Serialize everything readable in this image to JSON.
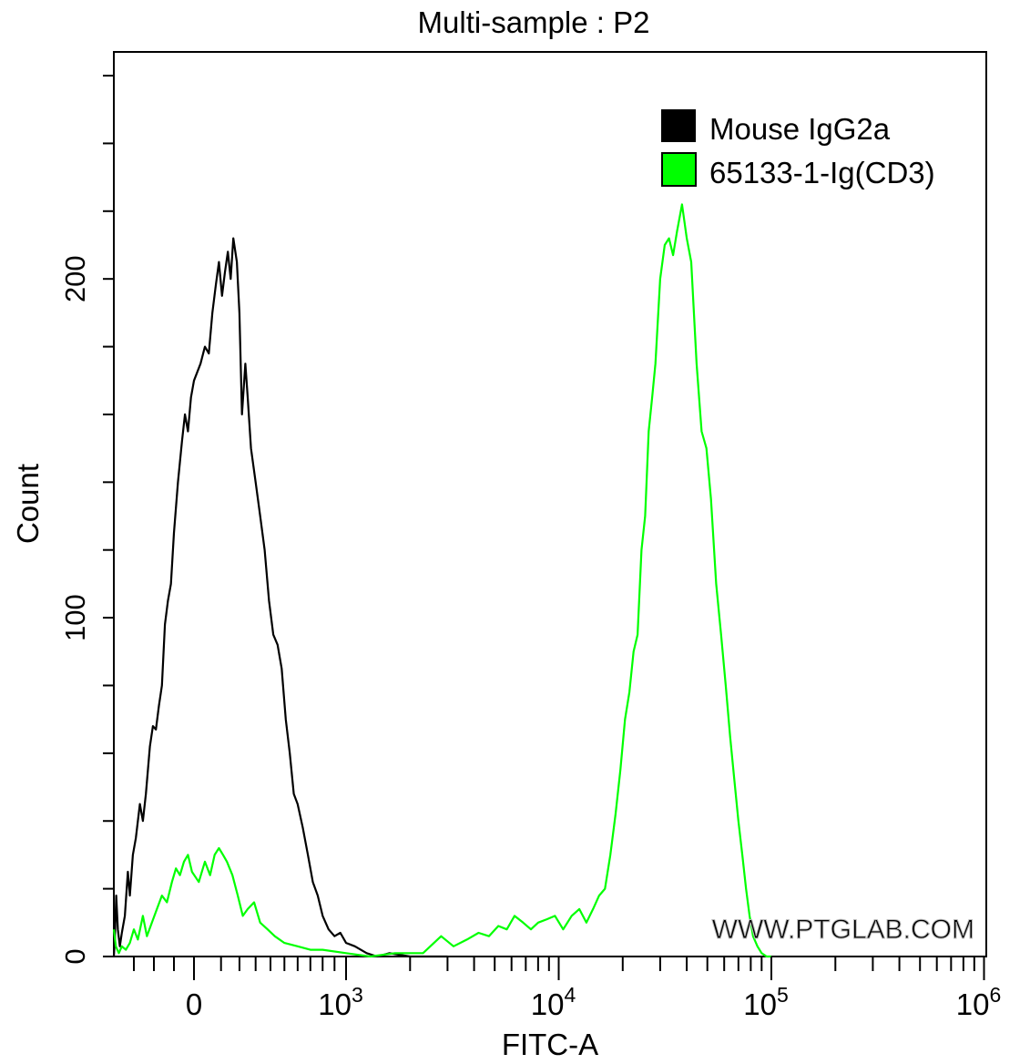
{
  "chart_data": {
    "type": "line",
    "title": "Multi-sample : P2",
    "xlabel": "FITC-A",
    "ylabel": "Count",
    "x_scale": "biexponential",
    "xlim": [
      -400,
      1000000
    ],
    "ylim": [
      0,
      267
    ],
    "x_ticks": [
      {
        "value": 0,
        "base": "0",
        "exp": ""
      },
      {
        "value": 1000,
        "base": "10",
        "exp": "3"
      },
      {
        "value": 10000,
        "base": "10",
        "exp": "4"
      },
      {
        "value": 100000,
        "base": "10",
        "exp": "5"
      },
      {
        "value": 1000000,
        "base": "10",
        "exp": "6"
      }
    ],
    "y_ticks": [
      0,
      100,
      200
    ],
    "legend_position": "top-right",
    "series": [
      {
        "name": "Mouse IgG2a",
        "color": "#000000",
        "points": [
          [
            -400,
            0
          ],
          [
            -395,
            5
          ],
          [
            -388,
            18
          ],
          [
            -380,
            8
          ],
          [
            -370,
            3
          ],
          [
            -360,
            7
          ],
          [
            -345,
            12
          ],
          [
            -330,
            25
          ],
          [
            -320,
            18
          ],
          [
            -305,
            30
          ],
          [
            -290,
            35
          ],
          [
            -270,
            45
          ],
          [
            -255,
            40
          ],
          [
            -240,
            48
          ],
          [
            -220,
            62
          ],
          [
            -205,
            68
          ],
          [
            -190,
            67
          ],
          [
            -175,
            74
          ],
          [
            -160,
            80
          ],
          [
            -145,
            98
          ],
          [
            -130,
            105
          ],
          [
            -115,
            110
          ],
          [
            -100,
            125
          ],
          [
            -80,
            140
          ],
          [
            -60,
            152
          ],
          [
            -45,
            160
          ],
          [
            -30,
            155
          ],
          [
            -15,
            165
          ],
          [
            0,
            170
          ],
          [
            15,
            175
          ],
          [
            30,
            180
          ],
          [
            45,
            178
          ],
          [
            60,
            190
          ],
          [
            75,
            198
          ],
          [
            90,
            205
          ],
          [
            105,
            195
          ],
          [
            120,
            202
          ],
          [
            135,
            208
          ],
          [
            150,
            200
          ],
          [
            165,
            212
          ],
          [
            185,
            205
          ],
          [
            200,
            190
          ],
          [
            215,
            160
          ],
          [
            235,
            175
          ],
          [
            250,
            165
          ],
          [
            270,
            150
          ],
          [
            300,
            140
          ],
          [
            330,
            130
          ],
          [
            360,
            120
          ],
          [
            390,
            105
          ],
          [
            420,
            95
          ],
          [
            450,
            92
          ],
          [
            480,
            85
          ],
          [
            510,
            70
          ],
          [
            540,
            60
          ],
          [
            570,
            48
          ],
          [
            600,
            45
          ],
          [
            640,
            38
          ],
          [
            680,
            30
          ],
          [
            720,
            22
          ],
          [
            760,
            18
          ],
          [
            800,
            12
          ],
          [
            850,
            8
          ],
          [
            900,
            6
          ],
          [
            950,
            7
          ],
          [
            1000,
            4
          ],
          [
            1100,
            3
          ],
          [
            1250,
            1
          ],
          [
            1400,
            0
          ],
          [
            1600,
            1
          ],
          [
            2000,
            0
          ],
          [
            3000,
            0
          ]
        ]
      },
      {
        "name": "65133-1-Ig(CD3)",
        "color": "#00ff00",
        "points": [
          [
            -400,
            8
          ],
          [
            -390,
            3
          ],
          [
            -375,
            1
          ],
          [
            -360,
            3
          ],
          [
            -340,
            2
          ],
          [
            -320,
            4
          ],
          [
            -300,
            8
          ],
          [
            -280,
            5
          ],
          [
            -255,
            12
          ],
          [
            -235,
            6
          ],
          [
            -210,
            10
          ],
          [
            -185,
            14
          ],
          [
            -160,
            18
          ],
          [
            -135,
            16
          ],
          [
            -110,
            22
          ],
          [
            -90,
            26
          ],
          [
            -70,
            24
          ],
          [
            -50,
            28
          ],
          [
            -30,
            30
          ],
          [
            -10,
            25
          ],
          [
            10,
            22
          ],
          [
            30,
            28
          ],
          [
            50,
            24
          ],
          [
            70,
            30
          ],
          [
            90,
            32
          ],
          [
            110,
            30
          ],
          [
            130,
            28
          ],
          [
            160,
            24
          ],
          [
            190,
            18
          ],
          [
            220,
            12
          ],
          [
            250,
            14
          ],
          [
            290,
            16
          ],
          [
            330,
            10
          ],
          [
            380,
            8
          ],
          [
            430,
            6
          ],
          [
            500,
            4
          ],
          [
            600,
            3
          ],
          [
            700,
            2
          ],
          [
            800,
            2
          ],
          [
            1000,
            1
          ],
          [
            1300,
            0
          ],
          [
            1700,
            1
          ],
          [
            2300,
            1
          ],
          [
            2800,
            6
          ],
          [
            3200,
            3
          ],
          [
            3700,
            5
          ],
          [
            4200,
            7
          ],
          [
            4700,
            6
          ],
          [
            5200,
            9
          ],
          [
            5700,
            8
          ],
          [
            6200,
            12
          ],
          [
            6800,
            10
          ],
          [
            7400,
            8
          ],
          [
            8000,
            10
          ],
          [
            8800,
            11
          ],
          [
            9600,
            12
          ],
          [
            10500,
            8
          ],
          [
            11500,
            12
          ],
          [
            12500,
            14
          ],
          [
            13500,
            10
          ],
          [
            14500,
            14
          ],
          [
            15500,
            18
          ],
          [
            16500,
            20
          ],
          [
            17500,
            30
          ],
          [
            18500,
            42
          ],
          [
            19500,
            55
          ],
          [
            20500,
            70
          ],
          [
            21500,
            78
          ],
          [
            22500,
            90
          ],
          [
            23500,
            95
          ],
          [
            24500,
            120
          ],
          [
            25500,
            130
          ],
          [
            26500,
            155
          ],
          [
            27500,
            165
          ],
          [
            28500,
            175
          ],
          [
            30000,
            200
          ],
          [
            31500,
            210
          ],
          [
            33000,
            212
          ],
          [
            34500,
            207
          ],
          [
            36000,
            214
          ],
          [
            38000,
            222
          ],
          [
            40000,
            212
          ],
          [
            42000,
            205
          ],
          [
            44500,
            175
          ],
          [
            47000,
            155
          ],
          [
            49500,
            150
          ],
          [
            52000,
            135
          ],
          [
            55000,
            110
          ],
          [
            58000,
            95
          ],
          [
            61000,
            80
          ],
          [
            64000,
            65
          ],
          [
            67000,
            52
          ],
          [
            70000,
            40
          ],
          [
            73000,
            30
          ],
          [
            76000,
            20
          ],
          [
            79000,
            12
          ],
          [
            82000,
            6
          ],
          [
            86000,
            3
          ],
          [
            90000,
            1
          ],
          [
            95000,
            0
          ],
          [
            100000,
            0
          ]
        ]
      }
    ],
    "watermark": "WWW.PTGLAB.COM"
  }
}
